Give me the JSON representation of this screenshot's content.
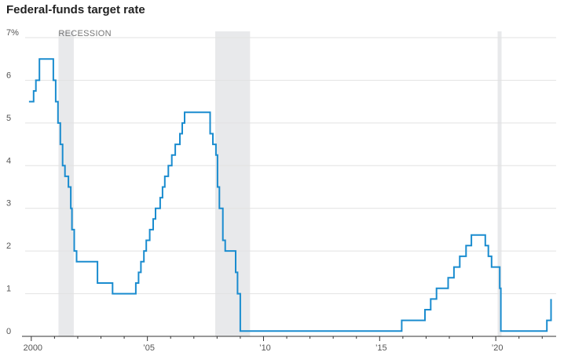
{
  "chart_data": {
    "type": "line",
    "title": "Federal-funds target rate",
    "unit_suffix": "%",
    "xlabel": "",
    "ylabel": "",
    "xlim": [
      1999.6,
      2022.6
    ],
    "ylim": [
      0,
      7
    ],
    "yticks": [
      0,
      1,
      2,
      3,
      4,
      5,
      6,
      7
    ],
    "ytick_labels": [
      "0",
      "1",
      "2",
      "3",
      "4",
      "5",
      "6",
      "7%"
    ],
    "xticks": [
      2000,
      2005,
      2010,
      2015,
      2020
    ],
    "xtick_labels": [
      "2000",
      "’05",
      "’10",
      "’15",
      "’20"
    ],
    "grid": "horizontal",
    "line_color": "#1a8ccf",
    "recession_color": "#e8e9eb",
    "recession_label": "RECESSION",
    "recessions": [
      [
        2001.17,
        2001.83
      ],
      [
        2007.92,
        2009.42
      ],
      [
        2020.08,
        2020.25
      ]
    ],
    "series": [
      {
        "step": true,
        "points": [
          [
            1999.9,
            5.5
          ],
          [
            2000.1,
            5.75
          ],
          [
            2000.2,
            6.0
          ],
          [
            2000.35,
            6.5
          ],
          [
            2000.95,
            6.0
          ],
          [
            2001.05,
            5.5
          ],
          [
            2001.15,
            5.0
          ],
          [
            2001.25,
            4.5
          ],
          [
            2001.35,
            4.0
          ],
          [
            2001.45,
            3.75
          ],
          [
            2001.6,
            3.5
          ],
          [
            2001.7,
            3.0
          ],
          [
            2001.75,
            2.5
          ],
          [
            2001.85,
            2.0
          ],
          [
            2001.95,
            1.75
          ],
          [
            2002.85,
            1.25
          ],
          [
            2003.5,
            1.0
          ],
          [
            2004.5,
            1.25
          ],
          [
            2004.62,
            1.5
          ],
          [
            2004.72,
            1.75
          ],
          [
            2004.85,
            2.0
          ],
          [
            2004.95,
            2.25
          ],
          [
            2005.1,
            2.5
          ],
          [
            2005.25,
            2.75
          ],
          [
            2005.35,
            3.0
          ],
          [
            2005.55,
            3.25
          ],
          [
            2005.65,
            3.5
          ],
          [
            2005.75,
            3.75
          ],
          [
            2005.9,
            4.0
          ],
          [
            2006.05,
            4.25
          ],
          [
            2006.2,
            4.5
          ],
          [
            2006.4,
            4.75
          ],
          [
            2006.5,
            5.0
          ],
          [
            2006.6,
            5.25
          ],
          [
            2007.7,
            4.75
          ],
          [
            2007.82,
            4.5
          ],
          [
            2007.95,
            4.25
          ],
          [
            2008.02,
            3.5
          ],
          [
            2008.1,
            3.0
          ],
          [
            2008.25,
            2.25
          ],
          [
            2008.35,
            2.0
          ],
          [
            2008.8,
            1.5
          ],
          [
            2008.88,
            1.0
          ],
          [
            2009.0,
            0.125
          ],
          [
            2015.95,
            0.375
          ],
          [
            2016.95,
            0.625
          ],
          [
            2017.2,
            0.875
          ],
          [
            2017.45,
            1.125
          ],
          [
            2017.95,
            1.375
          ],
          [
            2018.2,
            1.625
          ],
          [
            2018.45,
            1.875
          ],
          [
            2018.72,
            2.125
          ],
          [
            2018.95,
            2.375
          ],
          [
            2019.55,
            2.125
          ],
          [
            2019.68,
            1.875
          ],
          [
            2019.82,
            1.625
          ],
          [
            2020.17,
            1.125
          ],
          [
            2020.22,
            0.125
          ],
          [
            2022.2,
            0.375
          ],
          [
            2022.38,
            0.875
          ]
        ]
      }
    ]
  }
}
